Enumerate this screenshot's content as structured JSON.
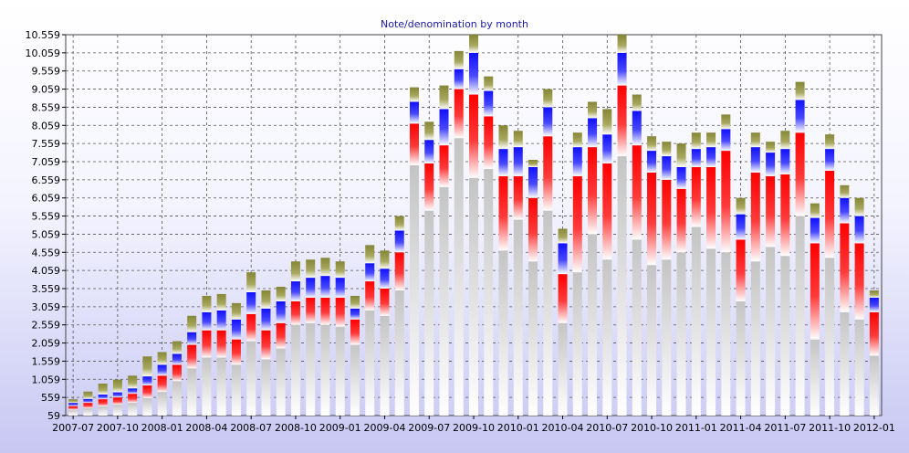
{
  "chart_data": {
    "type": "bar",
    "stacked": true,
    "title": "Note/denomination by month",
    "xlabel": "",
    "ylabel": "",
    "ylim": [
      59,
      10559
    ],
    "y_ticks": [
      "59",
      "559",
      "1.059",
      "1.559",
      "2.059",
      "2.559",
      "3.059",
      "3.559",
      "4.059",
      "4.559",
      "5.059",
      "5.559",
      "6.059",
      "6.559",
      "7.059",
      "7.559",
      "8.059",
      "8.559",
      "9.059",
      "9.559",
      "10.059",
      "10.559"
    ],
    "x_tick_labels": [
      "2007-07",
      "2007-10",
      "2008-01",
      "2008-04",
      "2008-07",
      "2008-10",
      "2009-01",
      "2009-04",
      "2009-07",
      "2009-10",
      "2010-01",
      "2010-04",
      "2010-07",
      "2010-10",
      "2011-01",
      "2011-04",
      "2011-07",
      "2011-10",
      "2012-01"
    ],
    "categories": [
      "2007-07",
      "2007-08",
      "2007-09",
      "2007-10",
      "2007-11",
      "2007-12",
      "2008-01",
      "2008-02",
      "2008-03",
      "2008-04",
      "2008-05",
      "2008-06",
      "2008-07",
      "2008-08",
      "2008-09",
      "2008-10",
      "2008-11",
      "2008-12",
      "2009-01",
      "2009-02",
      "2009-03",
      "2009-04",
      "2009-05",
      "2009-06",
      "2009-07",
      "2009-08",
      "2009-09",
      "2009-10",
      "2009-11",
      "2009-12",
      "2010-01",
      "2010-02",
      "2010-03",
      "2010-04",
      "2010-05",
      "2010-06",
      "2010-07",
      "2010-08",
      "2010-09",
      "2010-10",
      "2010-11",
      "2010-12",
      "2011-01",
      "2011-02",
      "2011-03",
      "2011-04",
      "2011-05",
      "2011-06",
      "2011-07",
      "2011-08",
      "2011-09",
      "2011-10",
      "2011-11",
      "2011-12",
      "2012-01"
    ],
    "grid": true,
    "colors": {
      "series1": "#c8c8c8",
      "series2": "#ff1a1a",
      "series3": "#1a1aff",
      "series4": "#8c8c3c",
      "title": "#1a1aa6",
      "grid": "#555555"
    },
    "series": [
      {
        "values": [
          160,
          200,
          250,
          300,
          350,
          480,
          650,
          950,
          1300,
          1600,
          1600,
          1400,
          2050,
          1550,
          1850,
          2500,
          2550,
          2500,
          2450,
          1950,
          2900,
          2750,
          3450,
          6900,
          5650,
          6300,
          7650,
          6550,
          6800,
          4550,
          5400,
          4250,
          5650,
          2550,
          3950,
          5000,
          4300,
          7150,
          4850,
          4150,
          4300,
          4500,
          5200,
          4600,
          4500,
          3150,
          4250,
          4650,
          4400,
          5500,
          2100,
          4350,
          2850,
          2650,
          1650
        ]
      },
      {
        "values": [
          100,
          150,
          200,
          200,
          250,
          350,
          450,
          450,
          650,
          750,
          750,
          700,
          750,
          800,
          700,
          650,
          700,
          750,
          800,
          700,
          800,
          750,
          1050,
          1150,
          1300,
          1150,
          1350,
          2300,
          1450,
          2050,
          1200,
          1750,
          2050,
          1350,
          2650,
          2400,
          2650,
          1950,
          2600,
          2550,
          2200,
          1750,
          1650,
          2250,
          2800,
          1700,
          2450,
          1950,
          2250,
          2300,
          2650,
          2400,
          2450,
          2100,
          1200
        ]
      },
      {
        "values": [
          90,
          110,
          130,
          140,
          150,
          250,
          300,
          300,
          350,
          500,
          550,
          550,
          600,
          600,
          600,
          550,
          550,
          600,
          550,
          300,
          500,
          550,
          600,
          600,
          650,
          1000,
          550,
          1150,
          700,
          750,
          800,
          850,
          800,
          850,
          800,
          800,
          800,
          900,
          950,
          600,
          650,
          600,
          500,
          550,
          600,
          700,
          700,
          650,
          700,
          900,
          700,
          600,
          700,
          750,
          400
        ]
      },
      {
        "values": [
          100,
          200,
          300,
          350,
          350,
          550,
          350,
          350,
          450,
          450,
          450,
          450,
          550,
          500,
          400,
          550,
          500,
          500,
          450,
          350,
          500,
          500,
          400,
          400,
          500,
          650,
          500,
          500,
          400,
          650,
          450,
          200,
          500,
          400,
          400,
          450,
          700,
          700,
          450,
          400,
          400,
          650,
          450,
          400,
          400,
          450,
          400,
          300,
          500,
          500,
          400,
          400,
          350,
          500,
          200
        ]
      }
    ]
  }
}
